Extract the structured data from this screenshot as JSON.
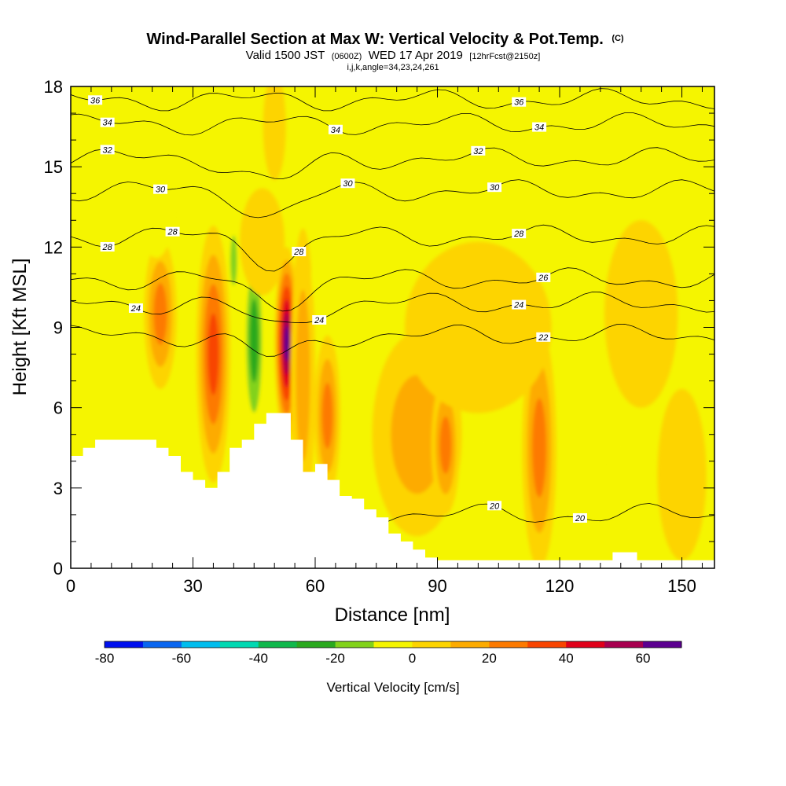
{
  "title": {
    "main": "Wind-Parallel Section at Max W: Vertical Velocity & Pot.Temp.",
    "main_tag": "(C)",
    "valid_prefix": "Valid 1500 JST",
    "valid_utc": "(0600Z)",
    "valid_date": "WED 17 Apr 2019",
    "forecast_tag": "[12hrFcst@2150z]",
    "indices": "i,j,k,angle=34,23,24,261"
  },
  "chart_data": {
    "type": "heatmap",
    "title": "Wind-Parallel Section at Max W: Vertical Velocity & Pot.Temp.",
    "xlabel": "Distance [nm]",
    "ylabel": "Height [Kft MSL]",
    "xlim": [
      0,
      158
    ],
    "ylim": [
      0,
      18
    ],
    "x_ticks": [
      "0",
      "30",
      "60",
      "90",
      "120",
      "150"
    ],
    "y_ticks": [
      "0",
      "3",
      "6",
      "9",
      "12",
      "15",
      "18"
    ],
    "colorbar": {
      "label": "Vertical Velocity [cm/s]",
      "tick_labels": [
        "-80",
        "-60",
        "-40",
        "-20",
        "0",
        "20",
        "40",
        "60"
      ],
      "levels": [
        -80,
        -70,
        -60,
        -50,
        -40,
        -30,
        -20,
        -10,
        0,
        10,
        20,
        30,
        40,
        50,
        60,
        70
      ],
      "colors": [
        "#0010ee",
        "#0a66f0",
        "#00bdee",
        "#00d9b2",
        "#10b84c",
        "#2aa91e",
        "#82d21a",
        "#f5f500",
        "#fdd400",
        "#fdab00",
        "#fd7a00",
        "#f84400",
        "#e0001a",
        "#a80050",
        "#5c0090"
      ]
    },
    "background_level_color": "#f5f500",
    "terrain": [
      [
        0,
        4.2
      ],
      [
        3,
        4.2
      ],
      [
        3,
        4.5
      ],
      [
        6,
        4.5
      ],
      [
        6,
        4.8
      ],
      [
        21,
        4.8
      ],
      [
        21,
        4.5
      ],
      [
        24,
        4.5
      ],
      [
        24,
        4.2
      ],
      [
        27,
        4.2
      ],
      [
        27,
        3.6
      ],
      [
        30,
        3.6
      ],
      [
        30,
        3.3
      ],
      [
        33,
        3.3
      ],
      [
        33,
        3.0
      ],
      [
        36,
        3.0
      ],
      [
        36,
        3.6
      ],
      [
        39,
        3.6
      ],
      [
        39,
        4.5
      ],
      [
        42,
        4.5
      ],
      [
        42,
        4.8
      ],
      [
        45,
        4.8
      ],
      [
        45,
        5.4
      ],
      [
        48,
        5.4
      ],
      [
        48,
        5.8
      ],
      [
        54,
        5.8
      ],
      [
        54,
        4.8
      ],
      [
        57,
        4.8
      ],
      [
        57,
        3.6
      ],
      [
        60,
        3.6
      ],
      [
        60,
        3.9
      ],
      [
        63,
        3.9
      ],
      [
        63,
        3.3
      ],
      [
        66,
        3.3
      ],
      [
        66,
        2.7
      ],
      [
        69,
        2.7
      ],
      [
        69,
        2.6
      ],
      [
        72,
        2.6
      ],
      [
        72,
        2.2
      ],
      [
        75,
        2.2
      ],
      [
        75,
        1.9
      ],
      [
        78,
        1.9
      ],
      [
        78,
        1.3
      ],
      [
        81,
        1.3
      ],
      [
        81,
        1.0
      ],
      [
        84,
        1.0
      ],
      [
        84,
        0.7
      ],
      [
        87,
        0.7
      ],
      [
        87,
        0.4
      ],
      [
        90,
        0.4
      ],
      [
        90,
        0.3
      ],
      [
        133,
        0.3
      ],
      [
        133,
        0.6
      ],
      [
        139,
        0.6
      ],
      [
        139,
        0.3
      ],
      [
        158,
        0.3
      ]
    ],
    "w_cells": [
      {
        "x": 35,
        "y": 8.0,
        "rx": 4.2,
        "ry": 4.8,
        "v": 45
      },
      {
        "x": 53,
        "y": 8.4,
        "rx": 3.0,
        "ry": 3.6,
        "v": 70
      },
      {
        "x": 57,
        "y": 7.2,
        "rx": 3.0,
        "ry": 5.5,
        "v": 25
      },
      {
        "x": 45,
        "y": 8.5,
        "rx": 2.7,
        "ry": 3.8,
        "v": -35
      },
      {
        "x": 47,
        "y": 12.2,
        "rx": 5.5,
        "ry": 2.0,
        "v": 12
      },
      {
        "x": 40,
        "y": 11.5,
        "rx": 1.4,
        "ry": 1.6,
        "v": -28
      },
      {
        "x": 22,
        "y": 9.5,
        "rx": 4.0,
        "ry": 2.8,
        "v": 30
      },
      {
        "x": 63,
        "y": 5.7,
        "rx": 3.2,
        "ry": 3.0,
        "v": 38
      },
      {
        "x": 85,
        "y": 5.0,
        "rx": 11.0,
        "ry": 3.8,
        "v": 25
      },
      {
        "x": 92,
        "y": 4.6,
        "rx": 3.5,
        "ry": 2.6,
        "v": 35
      },
      {
        "x": 115,
        "y": 4.5,
        "rx": 4.2,
        "ry": 4.5,
        "v": 36
      },
      {
        "x": 104,
        "y": 5.0,
        "rx": 3.6,
        "ry": 2.8,
        "v": -18
      },
      {
        "x": 21,
        "y": 13.2,
        "rx": 4.0,
        "ry": 1.6,
        "v": -16
      },
      {
        "x": 3,
        "y": 10.5,
        "rx": 5.0,
        "ry": 2.5,
        "v": -14
      },
      {
        "x": 62,
        "y": 11.0,
        "rx": 3.0,
        "ry": 1.4,
        "v": -16
      },
      {
        "x": 57,
        "y": 17.3,
        "rx": 2.0,
        "ry": 1.2,
        "v": -14
      },
      {
        "x": 50,
        "y": 16.5,
        "rx": 2.8,
        "ry": 2.0,
        "v": 16
      },
      {
        "x": 134,
        "y": 3.5,
        "rx": 1.5,
        "ry": 2.0,
        "v": -12
      },
      {
        "x": 150,
        "y": 3.5,
        "rx": 6.0,
        "ry": 3.2,
        "v": 12
      },
      {
        "x": 140,
        "y": 9.5,
        "rx": 9.0,
        "ry": 3.5,
        "v": 5
      },
      {
        "x": 100,
        "y": 9.0,
        "rx": 18.0,
        "ry": 3.2,
        "v": 8
      }
    ],
    "theta_contours": [
      {
        "label": "20",
        "y": 2.0,
        "labels_at": [
          104,
          125
        ]
      },
      {
        "label": "22",
        "y": 8.7,
        "labels_at": [
          116
        ]
      },
      {
        "label": "24",
        "y": 9.9,
        "labels_at": [
          16,
          61,
          110
        ]
      },
      {
        "label": "26",
        "y": 10.8,
        "labels_at": [
          116
        ]
      },
      {
        "label": "28",
        "y": 12.4,
        "labels_at": [
          9,
          25,
          56,
          110
        ]
      },
      {
        "label": "30",
        "y": 14.1,
        "labels_at": [
          22,
          68,
          104
        ]
      },
      {
        "label": "32",
        "y": 15.3,
        "labels_at": [
          9,
          100
        ]
      },
      {
        "label": "34",
        "y": 16.6,
        "labels_at": [
          9,
          65,
          115
        ]
      },
      {
        "label": "36",
        "y": 17.5,
        "labels_at": [
          6,
          110
        ]
      }
    ]
  }
}
